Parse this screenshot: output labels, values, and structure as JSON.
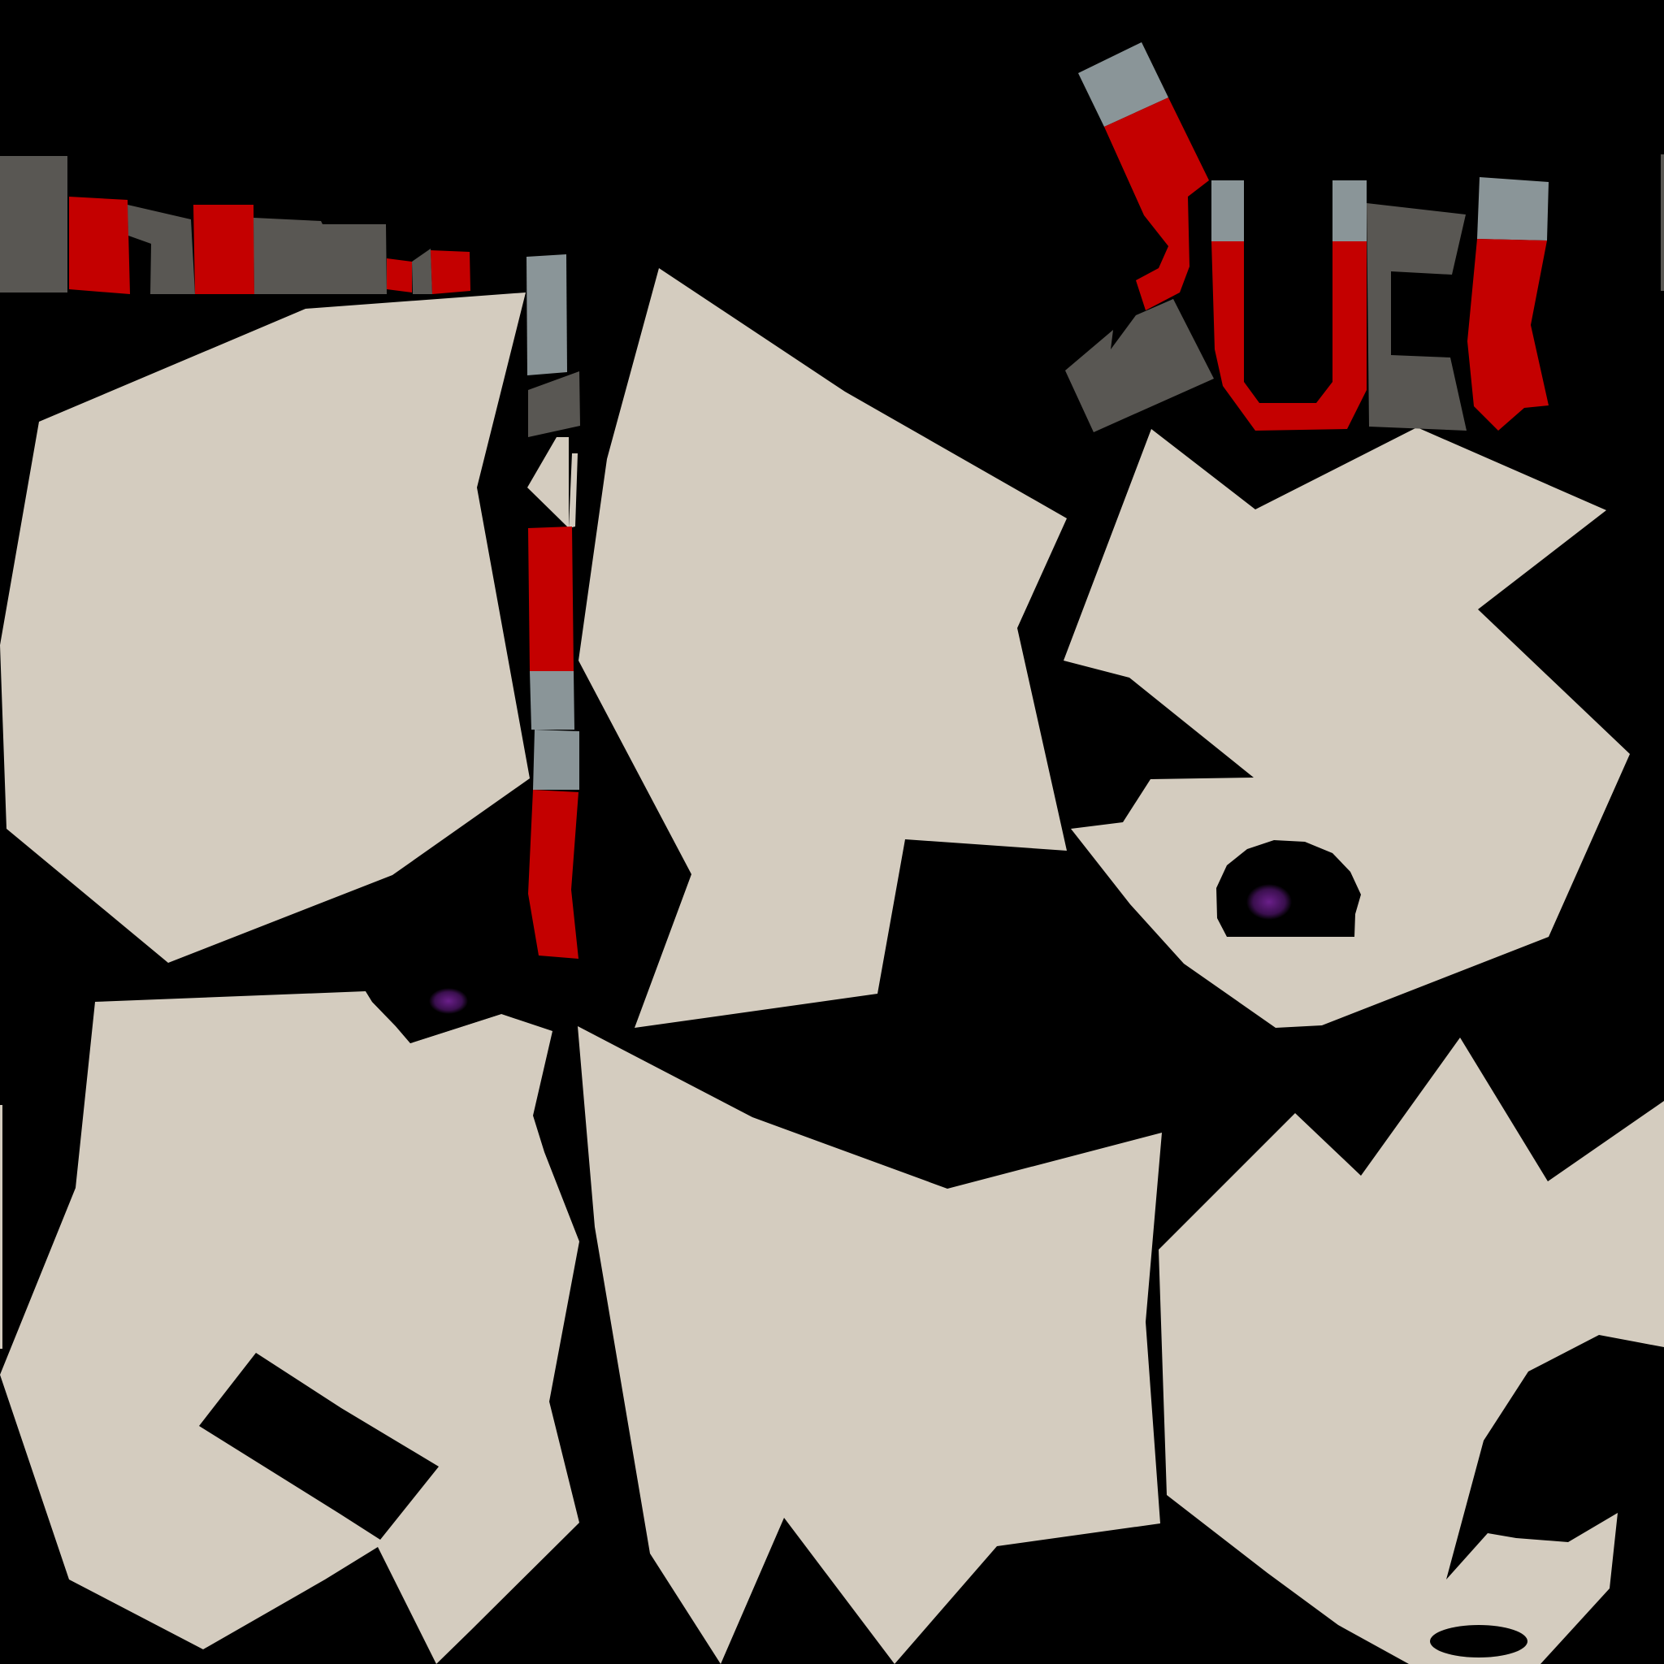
{
  "canvas": {
    "background": "#000000"
  },
  "palette": {
    "skin": "#d4ccbf",
    "red": "#c40000",
    "blue_gray": "#8a9598",
    "dark_gray": "#595753",
    "eye_purple": "#50166a"
  },
  "islands": [
    {
      "name": "uv-island-top-left",
      "color": "skin"
    },
    {
      "name": "uv-island-top-center",
      "color": "skin"
    },
    {
      "name": "uv-island-top-right",
      "color": "skin"
    },
    {
      "name": "uv-island-bottom-left",
      "color": "skin"
    },
    {
      "name": "uv-island-bottom-center",
      "color": "skin"
    },
    {
      "name": "uv-island-bottom-right",
      "color": "skin"
    },
    {
      "name": "uv-strip-top-left",
      "color": "dark_gray"
    },
    {
      "name": "uv-strip-vertical",
      "color": "red"
    },
    {
      "name": "uv-strip-top-right",
      "color": "red"
    }
  ],
  "eyes": [
    {
      "name": "eye-right-island"
    },
    {
      "name": "eye-bottom-left-island"
    }
  ]
}
